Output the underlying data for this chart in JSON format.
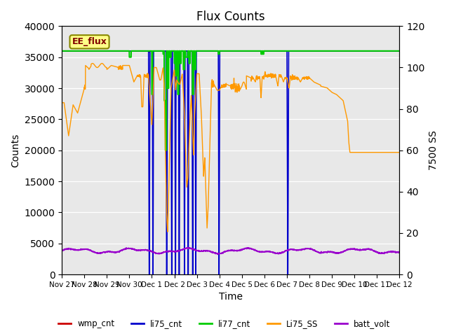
{
  "title": "Flux Counts",
  "xlabel": "Time",
  "ylabel_left": "Counts",
  "ylabel_right": "7500 SS",
  "plot_bg_color": "#e8e8e8",
  "annotation_text": "EE_flux",
  "annotation_box_color": "#ffff88",
  "annotation_box_edge": "#888800",
  "left_ylim": [
    0,
    40000
  ],
  "right_ylim": [
    0,
    120
  ],
  "series": {
    "wmp_cnt": {
      "color": "#cc0000",
      "lw": 1.0
    },
    "li75_cnt": {
      "color": "#0000cc",
      "lw": 1.2
    },
    "li77_cnt": {
      "color": "#00cc00",
      "lw": 1.5
    },
    "Li75_SS": {
      "color": "#ff9900",
      "lw": 1.0
    },
    "batt_volt": {
      "color": "#9900cc",
      "lw": 1.0
    }
  },
  "x_tick_labels": [
    "Nov 27",
    "Nov 28",
    "Nov 29",
    "Nov 30",
    "Dec 1",
    "Dec 2",
    "Dec 3",
    "Dec 4",
    "Dec 5",
    "Dec 6",
    "Dec 7",
    "Dec 8",
    "Dec 9",
    "Dec 10",
    "Dec 11",
    "Dec 12"
  ],
  "x_tick_positions": [
    0,
    1,
    2,
    3,
    4,
    5,
    6,
    7,
    8,
    9,
    10,
    11,
    12,
    13,
    14,
    15
  ],
  "left_yticks": [
    0,
    5000,
    10000,
    15000,
    20000,
    25000,
    30000,
    35000,
    40000
  ],
  "right_yticks": [
    0,
    20,
    40,
    60,
    80,
    100,
    120
  ]
}
